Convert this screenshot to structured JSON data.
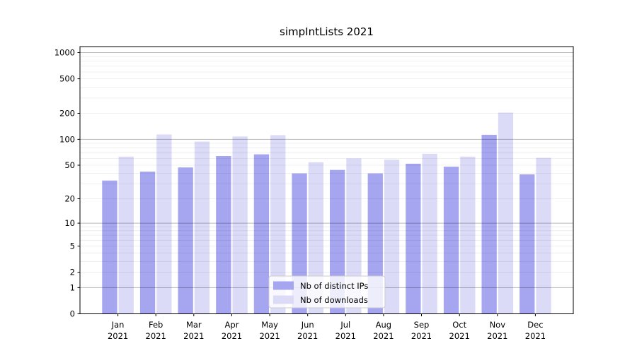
{
  "chart_data": {
    "type": "bar",
    "title": "simpIntLists 2021",
    "categories": [
      "Jan",
      "Feb",
      "Mar",
      "Apr",
      "May",
      "Jun",
      "Jul",
      "Aug",
      "Sep",
      "Oct",
      "Nov",
      "Dec"
    ],
    "category_year": "2021",
    "series": [
      {
        "name": "Nb of distinct IPs",
        "color": "#a5a5f0",
        "values": [
          33,
          42,
          47,
          64,
          67,
          40,
          44,
          40,
          52,
          48,
          113,
          39
        ]
      },
      {
        "name": "Nb of downloads",
        "color": "#dbdbf8",
        "values": [
          63,
          114,
          94,
          108,
          112,
          54,
          60,
          58,
          68,
          63,
          204,
          61
        ]
      }
    ],
    "yscale": "log1p",
    "yticks": [
      0,
      1,
      2,
      5,
      10,
      20,
      50,
      100,
      200,
      500,
      1000
    ],
    "ylim": [
      0,
      1160
    ],
    "xlabel": "",
    "ylabel": "",
    "grid": {
      "major": true,
      "minor": true
    },
    "legend": {
      "position": "lower-center",
      "entries": [
        "Nb of distinct IPs",
        "Nb of downloads"
      ]
    }
  },
  "colors": {
    "background": "#ffffff",
    "spine": "#000000",
    "tick_text": "#000000",
    "major_grid": "rgba(0,0,0,0.28)",
    "minor_grid": "rgba(0,0,0,0.08)",
    "legend_border": "#cccccc",
    "legend_bg": "rgba(255,255,255,0.8)"
  }
}
